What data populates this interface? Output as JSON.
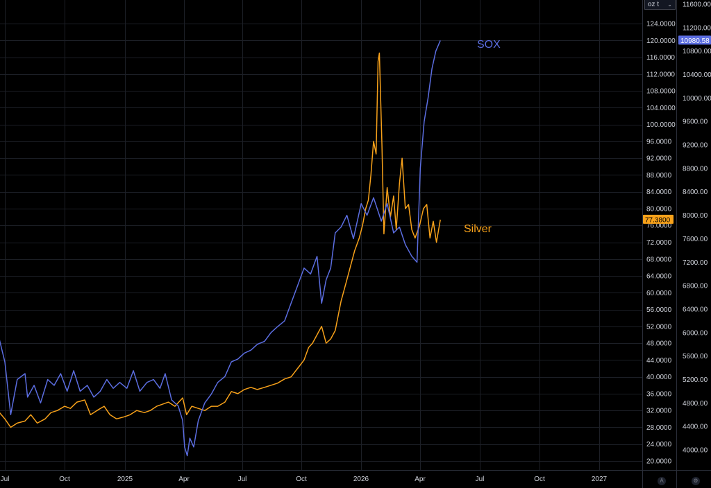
{
  "toolbar": {
    "unit_label": "oz t"
  },
  "chart_data": [
    {
      "type": "line",
      "title": "",
      "xlabel": "",
      "ylabel": "",
      "x_ticks": [
        "Jul",
        "Oct",
        "2025",
        "Apr",
        "Jul",
        "Oct",
        "2026",
        "Apr",
        "Jul",
        "Oct",
        "2027"
      ],
      "axis_left": {
        "ticks": [
          "20.0000",
          "24.0000",
          "28.0000",
          "32.0000",
          "36.0000",
          "40.0000",
          "44.0000",
          "48.0000",
          "52.0000",
          "56.0000",
          "60.0000",
          "64.0000",
          "68.0000",
          "72.0000",
          "76.0000",
          "80.0000",
          "84.0000",
          "88.0000",
          "92.0000",
          "96.0000",
          "100.0000",
          "104.0000",
          "108.0000",
          "112.0000",
          "116.0000",
          "120.0000",
          "124.0000"
        ],
        "range": [
          18,
          126
        ]
      },
      "axis_right": {
        "ticks": [
          "4000.00",
          "4400.00",
          "4800.00",
          "5200.00",
          "5600.00",
          "6000.00",
          "6400.00",
          "6800.00",
          "7200.00",
          "7600.00",
          "8000.00",
          "8400.00",
          "8800.00",
          "9200.00",
          "9600.00",
          "10000.00",
          "10400.00",
          "10800.00",
          "11200.00",
          "11600.00"
        ],
        "range": [
          3800,
          11660
        ]
      },
      "grid": true,
      "series": [
        {
          "name": "Silver",
          "axis": "left",
          "color": "#f7a11a",
          "last_value": "77.3800",
          "x": [
            "2024-06-01",
            "2024-06-10",
            "2024-06-20",
            "2024-07-01",
            "2024-07-10",
            "2024-07-20",
            "2024-08-01",
            "2024-08-10",
            "2024-08-20",
            "2024-09-01",
            "2024-09-10",
            "2024-09-20",
            "2024-10-01",
            "2024-10-10",
            "2024-10-20",
            "2024-11-01",
            "2024-11-10",
            "2024-11-20",
            "2024-12-01",
            "2024-12-10",
            "2024-12-20",
            "2025-01-01",
            "2025-01-10",
            "2025-01-20",
            "2025-02-01",
            "2025-02-10",
            "2025-02-20",
            "2025-03-01",
            "2025-03-10",
            "2025-03-20",
            "2025-04-01",
            "2025-04-07",
            "2025-04-15",
            "2025-04-25",
            "2025-05-05",
            "2025-05-15",
            "2025-05-25",
            "2025-06-05",
            "2025-06-15",
            "2025-06-25",
            "2025-07-05",
            "2025-07-15",
            "2025-07-25",
            "2025-08-05",
            "2025-08-15",
            "2025-08-25",
            "2025-09-05",
            "2025-09-15",
            "2025-09-25",
            "2025-10-05",
            "2025-10-12",
            "2025-10-18",
            "2025-10-25",
            "2025-11-01",
            "2025-11-08",
            "2025-11-15",
            "2025-11-22",
            "2025-12-01",
            "2025-12-08",
            "2025-12-15",
            "2025-12-22",
            "2025-12-29",
            "2026-01-03",
            "2026-01-08",
            "2026-01-12",
            "2026-01-16",
            "2026-01-20",
            "2026-01-24",
            "2026-01-27",
            "2026-01-29",
            "2026-02-02",
            "2026-02-05",
            "2026-02-10",
            "2026-02-15",
            "2026-02-20",
            "2026-02-24",
            "2026-03-01",
            "2026-03-05",
            "2026-03-10",
            "2026-03-15",
            "2026-03-20",
            "2026-03-25",
            "2026-04-01",
            "2026-04-07",
            "2026-04-12",
            "2026-04-17",
            "2026-04-22",
            "2026-04-27",
            "2026-05-03"
          ],
          "y": [
            31,
            31.5,
            32,
            30,
            28,
            29,
            29.5,
            31,
            29,
            30,
            31.5,
            32,
            33,
            32.5,
            34,
            34.5,
            31,
            32,
            33,
            31,
            30,
            30.5,
            31,
            32,
            31.5,
            32,
            33,
            33.5,
            34,
            33,
            35,
            31,
            33,
            32.5,
            32,
            33,
            33,
            34,
            36.5,
            36,
            37,
            37.5,
            37,
            37.5,
            38,
            38.5,
            39.5,
            40,
            42,
            44,
            47,
            48,
            50,
            52,
            48,
            49,
            51,
            58,
            62,
            66,
            70,
            73,
            76,
            80,
            82,
            88,
            96,
            93,
            115,
            117,
            95,
            74,
            85,
            78,
            83,
            75,
            86,
            92,
            80,
            81,
            75,
            73,
            76,
            80,
            81,
            73,
            77,
            72,
            77.38
          ]
        },
        {
          "name": "SOX",
          "axis": "right",
          "color": "#5b6de0",
          "last_value": "10980.58",
          "x": [
            "2024-06-01",
            "2024-06-10",
            "2024-06-20",
            "2024-07-01",
            "2024-07-10",
            "2024-07-20",
            "2024-08-01",
            "2024-08-05",
            "2024-08-15",
            "2024-08-25",
            "2024-09-05",
            "2024-09-15",
            "2024-09-25",
            "2024-10-05",
            "2024-10-15",
            "2024-10-25",
            "2024-11-05",
            "2024-11-15",
            "2024-11-25",
            "2024-12-05",
            "2024-12-15",
            "2024-12-25",
            "2025-01-05",
            "2025-01-15",
            "2025-01-25",
            "2025-02-05",
            "2025-02-15",
            "2025-02-25",
            "2025-03-05",
            "2025-03-15",
            "2025-03-25",
            "2025-04-01",
            "2025-04-04",
            "2025-04-08",
            "2025-04-12",
            "2025-04-18",
            "2025-04-25",
            "2025-05-05",
            "2025-05-15",
            "2025-05-25",
            "2025-06-05",
            "2025-06-15",
            "2025-06-25",
            "2025-07-05",
            "2025-07-15",
            "2025-07-25",
            "2025-08-05",
            "2025-08-15",
            "2025-08-25",
            "2025-09-05",
            "2025-09-15",
            "2025-09-25",
            "2025-10-05",
            "2025-10-15",
            "2025-10-25",
            "2025-11-01",
            "2025-11-08",
            "2025-11-15",
            "2025-11-22",
            "2025-12-01",
            "2025-12-10",
            "2025-12-20",
            "2026-01-01",
            "2026-01-10",
            "2026-01-20",
            "2026-02-01",
            "2026-02-10",
            "2026-02-20",
            "2026-03-01",
            "2026-03-10",
            "2026-03-20",
            "2026-03-28",
            "2026-04-02",
            "2026-04-08",
            "2026-04-14",
            "2026-04-20",
            "2026-04-26",
            "2026-05-03"
          ],
          "y": [
            5700,
            5800,
            6000,
            5500,
            4600,
            5200,
            5300,
            4900,
            5100,
            4800,
            5200,
            5100,
            5300,
            5000,
            5350,
            5000,
            5100,
            4900,
            5000,
            5200,
            5050,
            5150,
            5050,
            5350,
            5000,
            5150,
            5200,
            5050,
            5300,
            4850,
            4750,
            4500,
            4050,
            3900,
            4200,
            4050,
            4500,
            4800,
            4950,
            5150,
            5250,
            5500,
            5550,
            5650,
            5700,
            5800,
            5850,
            6000,
            6100,
            6200,
            6500,
            6800,
            7100,
            7000,
            7300,
            6500,
            6900,
            7100,
            7700,
            7800,
            8000,
            7600,
            8200,
            8000,
            8300,
            7900,
            8200,
            7700,
            7800,
            7500,
            7300,
            7200,
            8800,
            9600,
            10000,
            10500,
            10800,
            10980.58
          ]
        }
      ]
    }
  ]
}
